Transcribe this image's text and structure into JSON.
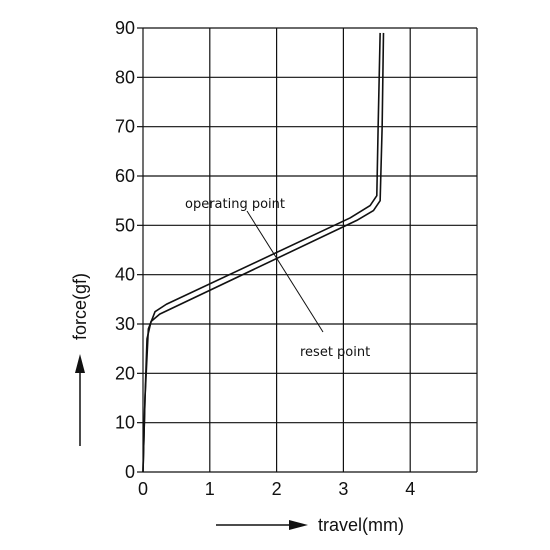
{
  "chart_data": {
    "type": "line",
    "title": "",
    "xlabel": "travel(mm)",
    "ylabel": "force(gf)",
    "xlim": [
      0,
      5
    ],
    "ylim": [
      0,
      90
    ],
    "xticks": [
      0,
      1,
      2,
      3,
      4
    ],
    "yticks": [
      0,
      10,
      20,
      30,
      40,
      50,
      60,
      70,
      80,
      90
    ],
    "grid": true,
    "series": [
      {
        "values_xy": [
          [
            0,
            0
          ],
          [
            0.03,
            15
          ],
          [
            0.06,
            27
          ],
          [
            0.12,
            30.5
          ],
          [
            0.25,
            32
          ],
          [
            3.2,
            51
          ],
          [
            3.45,
            53
          ],
          [
            3.55,
            55
          ],
          [
            3.58,
            70
          ],
          [
            3.6,
            89
          ]
        ]
      },
      {
        "values_xy": [
          [
            0,
            0
          ],
          [
            0.03,
            15
          ],
          [
            0.08,
            29
          ],
          [
            0.18,
            32.5
          ],
          [
            0.35,
            34
          ],
          [
            3.1,
            51.5
          ],
          [
            3.4,
            54
          ],
          [
            3.5,
            56
          ],
          [
            3.52,
            70
          ],
          [
            3.55,
            89
          ]
        ]
      }
    ],
    "annotations": [
      {
        "text": "operating point"
      },
      {
        "text": "reset point"
      }
    ]
  }
}
